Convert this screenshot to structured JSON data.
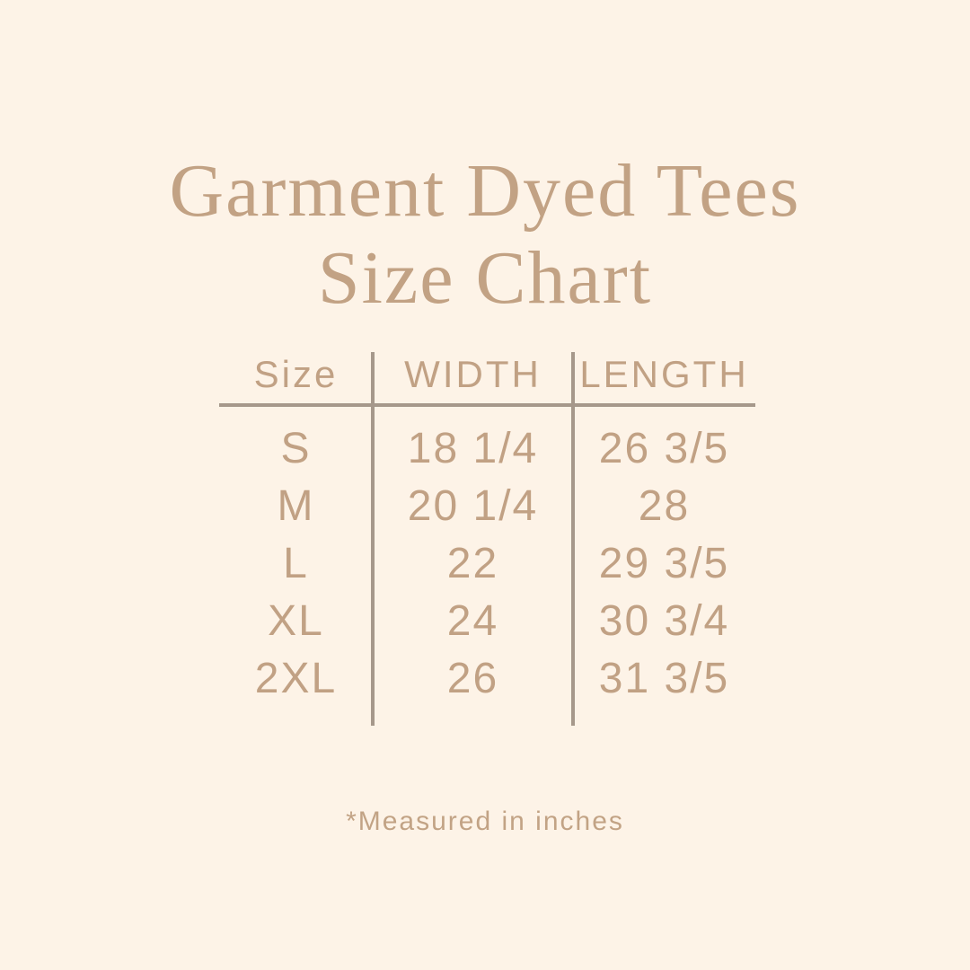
{
  "chart_data": {
    "type": "table",
    "title_line1": "Garment Dyed Tees",
    "title_line2": "Size Chart",
    "columns": [
      "Size",
      "WIDTH",
      "LENGTH"
    ],
    "rows": [
      {
        "size": "S",
        "width": "18 1/4",
        "length": "26 3/5"
      },
      {
        "size": "M",
        "width": "20 1/4",
        "length": "28"
      },
      {
        "size": "L",
        "width": "22",
        "length": "29 3/5"
      },
      {
        "size": "XL",
        "width": "24",
        "length": "30 3/4"
      },
      {
        "size": "2XL",
        "width": "26",
        "length": "31 3/5"
      }
    ],
    "footnote": "*Measured in inches"
  },
  "colors": {
    "background": "#fdf3e7",
    "text_tan": "#c1a184",
    "title_tan": "#c2a284",
    "rule_line": "#a6988b"
  }
}
